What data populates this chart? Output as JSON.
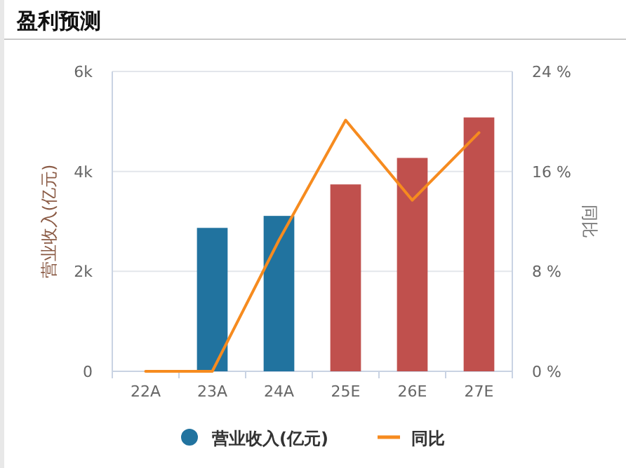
{
  "chart_data": {
    "type": "bar",
    "title": "盈利预测",
    "ylabel": "营业收入(亿元)",
    "y2label": "同比",
    "categories": [
      "22A",
      "23A",
      "24A",
      "25E",
      "26E",
      "27E"
    ],
    "series": [
      {
        "name": "营业收入(亿元)",
        "colors": [
          "#21739f",
          "#21739f",
          "#21739f",
          "#c0504d",
          "#c0504d",
          "#c0504d"
        ],
        "values": [
          null,
          2870,
          3110,
          3740,
          4270,
          5080
        ]
      },
      {
        "name": "同比",
        "type": "line",
        "axis": "y2",
        "color": "#f68b1f",
        "values": [
          0,
          0,
          10.5,
          20.1,
          13.7,
          19.1
        ]
      }
    ],
    "ylim": [
      0,
      6000
    ],
    "yticks": [
      {
        "value": 0,
        "label": "0"
      },
      {
        "value": 2000,
        "label": "2k"
      },
      {
        "value": 4000,
        "label": "4k"
      },
      {
        "value": 6000,
        "label": "6k"
      }
    ],
    "y2lim": [
      0,
      24
    ],
    "y2ticks": [
      {
        "value": 0,
        "label": "0 %"
      },
      {
        "value": 8,
        "label": "8 %"
      },
      {
        "value": 16,
        "label": "16 %"
      },
      {
        "value": 24,
        "label": "24 %"
      }
    ],
    "grid": "y",
    "legend": "bottom"
  }
}
